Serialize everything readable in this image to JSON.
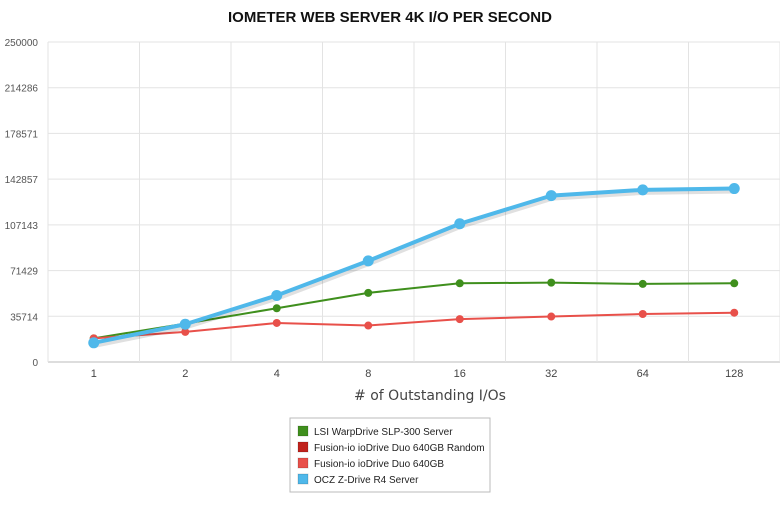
{
  "chart_data": {
    "type": "line",
    "title": "IOMETER WEB SERVER 4K I/O PER SECOND",
    "xlabel": "# of Outstanding I/Os",
    "ylabel": "",
    "categories": [
      "1",
      "2",
      "4",
      "8",
      "16",
      "32",
      "64",
      "128"
    ],
    "ylim": [
      0,
      250000
    ],
    "yticks": [
      "0",
      "35714",
      "71429",
      "107143",
      "142857",
      "178571",
      "214286",
      "250000"
    ],
    "grid": true,
    "legend_position": "bottom-center",
    "series": [
      {
        "name": "LSI WarpDrive SLP-300 Server",
        "color": "#3f8f1d",
        "values": [
          18500,
          30000,
          42000,
          54000,
          61500,
          62000,
          61000,
          61500
        ]
      },
      {
        "name": "Fusion-io ioDrive Duo 640GB Random",
        "color": "#c0221c",
        "values": [
          null,
          null,
          null,
          null,
          null,
          null,
          null,
          null
        ]
      },
      {
        "name": "Fusion-io ioDrive Duo 640GB",
        "color": "#e8504a",
        "values": [
          18500,
          23500,
          30500,
          28500,
          33500,
          35500,
          37500,
          38500
        ]
      },
      {
        "name": "OCZ Z-Drive R4 Server",
        "color": "#4fb8ea",
        "values": [
          15000,
          29500,
          52000,
          79000,
          108000,
          130000,
          134500,
          135500
        ]
      }
    ]
  }
}
